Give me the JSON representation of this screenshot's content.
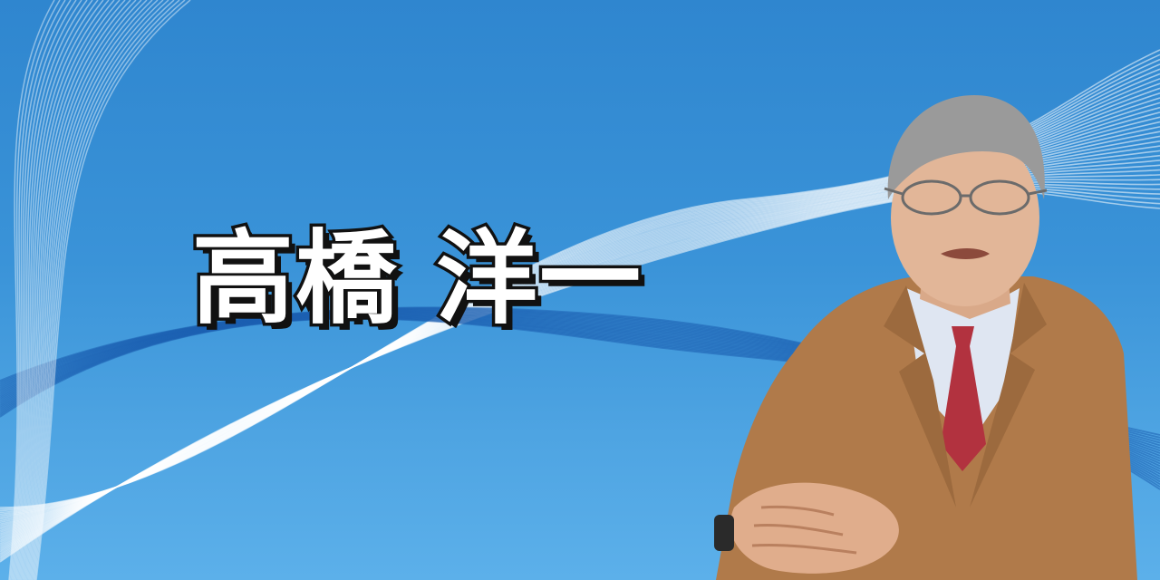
{
  "banner": {
    "title": "高橋 洋一",
    "colors": {
      "background_top": "#2f86cf",
      "background_bottom": "#5cb0ea",
      "wave_light": "#ffffff",
      "wave_dark": "#1c5fb0",
      "title_fill": "#ffffff",
      "title_outline": "#111111"
    },
    "portrait": {
      "subject": "man-in-glasses-tan-jacket-clasped-hands",
      "colors": {
        "jacket": "#b07a4a",
        "shirt": "#dfe6f2",
        "tie": "#b2323f",
        "hair": "#9a9a9a",
        "skin": "#e2b698"
      }
    }
  }
}
